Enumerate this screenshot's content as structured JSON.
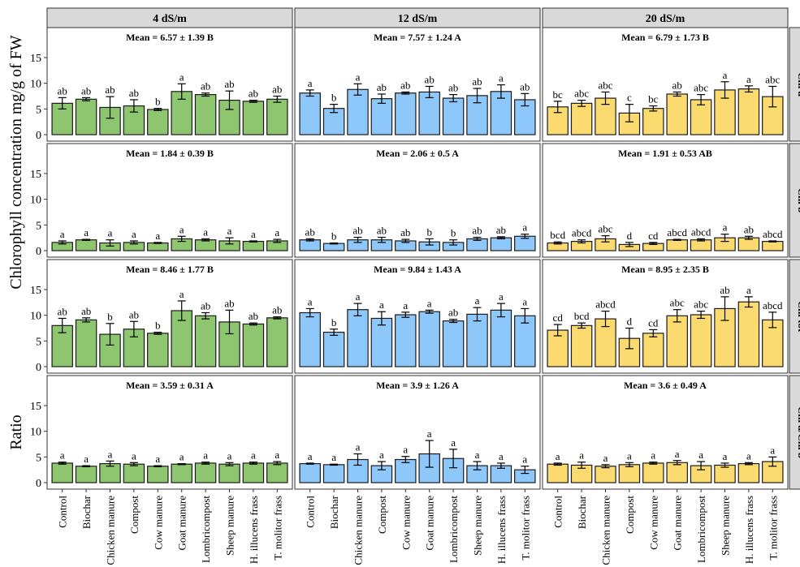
{
  "chart_data": {
    "type": "bar",
    "ylabel": "Chlorophyll concentration mg/g of FW",
    "ylabel_bottom": "Ratio",
    "categories": [
      "Control",
      "Biochar",
      "Chicken manure",
      "Compost",
      "Cow manure",
      "Goat manure",
      "Lombricompost",
      "Sheep manure",
      "H. illucens frass",
      "T. molitor frass"
    ],
    "columns": [
      "4 dS/m",
      "12 dS/m",
      "20 dS/m"
    ],
    "colors": [
      "#8dc66e",
      "#8ec8fa",
      "#fbdb6f"
    ],
    "ylim": [
      0,
      18
    ],
    "yticks": [
      0,
      5,
      10,
      15
    ],
    "rows": [
      {
        "name": "Chl a",
        "panels": [
          {
            "mean": "Mean = 6.57 ± 1.39 B",
            "values": [
              6.1,
              6.9,
              5.3,
              5.6,
              4.9,
              8.4,
              7.8,
              6.7,
              6.5,
              6.9
            ],
            "errors": [
              1.1,
              0.3,
              2.1,
              1.2,
              0.2,
              1.5,
              0.3,
              1.8,
              0.2,
              0.6
            ],
            "letters": [
              "ab",
              "ab",
              "ab",
              "ab",
              "b",
              "a",
              "ab",
              "ab",
              "ab",
              "ab"
            ]
          },
          {
            "mean": "Mean = 7.57 ± 1.24 A",
            "values": [
              8.1,
              5.1,
              8.8,
              7.0,
              8.1,
              8.3,
              7.1,
              7.6,
              8.4,
              6.8
            ],
            "errors": [
              0.6,
              0.8,
              1.1,
              0.9,
              0.2,
              1.1,
              0.7,
              1.4,
              1.3,
              1.2
            ],
            "letters": [
              "a",
              "b",
              "a",
              "ab",
              "ab",
              "ab",
              "ab",
              "ab",
              "a",
              "ab"
            ]
          },
          {
            "mean": "Mean = 6.79 ± 1.73 B",
            "values": [
              5.4,
              6.1,
              7.1,
              4.2,
              5.1,
              7.9,
              6.8,
              8.7,
              8.9,
              7.4
            ],
            "errors": [
              1.1,
              0.6,
              1.2,
              1.7,
              0.5,
              0.4,
              1.0,
              1.6,
              0.6,
              2.0
            ],
            "letters": [
              "bc",
              "abc",
              "abc",
              "c",
              "bc",
              "ab",
              "abc",
              "a",
              "a",
              "abc"
            ]
          }
        ]
      },
      {
        "name": "Chl b",
        "panels": [
          {
            "mean": "Mean = 1.84 ± 0.39 B",
            "values": [
              1.6,
              2.1,
              1.5,
              1.6,
              1.5,
              2.3,
              2.1,
              1.9,
              1.8,
              1.9
            ],
            "errors": [
              0.3,
              0.1,
              0.6,
              0.3,
              0.1,
              0.5,
              0.2,
              0.6,
              0.1,
              0.3
            ],
            "letters": [
              "a",
              "a",
              "a",
              "a",
              "a",
              "a",
              "a",
              "a",
              "a",
              "a"
            ]
          },
          {
            "mean": "Mean = 2.06 ± 0.5 A",
            "values": [
              2.1,
              1.4,
              2.1,
              2.1,
              1.9,
              1.7,
              1.6,
              2.3,
              2.5,
              2.8
            ],
            "errors": [
              0.2,
              0.1,
              0.5,
              0.5,
              0.3,
              0.6,
              0.5,
              0.3,
              0.2,
              0.4
            ],
            "letters": [
              "ab",
              "b",
              "ab",
              "ab",
              "ab",
              "b",
              "b",
              "ab",
              "ab",
              "a"
            ]
          },
          {
            "mean": "Mean = 1.91 ± 0.53 AB",
            "values": [
              1.5,
              1.8,
              2.3,
              1.2,
              1.4,
              2.1,
              2.1,
              2.5,
              2.5,
              1.8
            ],
            "errors": [
              0.2,
              0.3,
              0.6,
              0.4,
              0.2,
              0.1,
              0.2,
              0.7,
              0.3,
              0.1
            ],
            "letters": [
              "bcd",
              "abcd",
              "abc",
              "d",
              "cd",
              "abcd",
              "abcd",
              "a",
              "ab",
              "abcd"
            ]
          }
        ]
      },
      {
        "name": "Chl tot",
        "panels": [
          {
            "mean": "Mean = 8.46 ± 1.77 B",
            "values": [
              8.0,
              9.1,
              6.3,
              7.3,
              6.5,
              10.9,
              9.9,
              8.7,
              8.3,
              9.5
            ],
            "errors": [
              1.4,
              0.4,
              2.1,
              1.5,
              0.2,
              1.9,
              0.6,
              2.3,
              0.2,
              0.2
            ],
            "letters": [
              "ab",
              "ab",
              "b",
              "ab",
              "b",
              "a",
              "ab",
              "ab",
              "ab",
              "ab"
            ]
          },
          {
            "mean": "Mean = 9.84 ± 1.43 A",
            "values": [
              10.5,
              6.7,
              11.1,
              9.4,
              10.1,
              10.7,
              8.9,
              10.2,
              11.0,
              9.9
            ],
            "errors": [
              0.8,
              0.6,
              1.2,
              1.3,
              0.5,
              0.3,
              0.3,
              1.3,
              1.3,
              1.4
            ],
            "letters": [
              "a",
              "b",
              "a",
              "a",
              "a",
              "a",
              "ab",
              "a",
              "a",
              "a"
            ]
          },
          {
            "mean": "Mean = 8.95 ± 2.35 B",
            "values": [
              7.1,
              8.0,
              9.3,
              5.5,
              6.5,
              9.9,
              10.1,
              11.3,
              12.6,
              9.1
            ],
            "errors": [
              1.1,
              0.5,
              1.5,
              2.0,
              0.7,
              1.2,
              0.7,
              2.3,
              1.0,
              1.5
            ],
            "letters": [
              "cd",
              "bcd",
              "abcd",
              "d",
              "cd",
              "abc",
              "abc",
              "ab",
              "a",
              "abcd"
            ]
          }
        ]
      },
      {
        "name": "Chl a/Chl b",
        "panels": [
          {
            "mean": "Mean = 3.59 ± 0.31 A",
            "values": [
              3.8,
              3.2,
              3.7,
              3.6,
              3.2,
              3.6,
              3.8,
              3.6,
              3.8,
              3.8
            ],
            "errors": [
              0.2,
              0.1,
              0.5,
              0.3,
              0.1,
              0.1,
              0.2,
              0.3,
              0.2,
              0.3
            ],
            "letters": [
              "a",
              "a",
              "a",
              "a",
              "a",
              "a",
              "a",
              "a",
              "a",
              "a"
            ]
          },
          {
            "mean": "Mean = 3.9 ± 1.26 A",
            "values": [
              3.7,
              3.5,
              4.5,
              3.3,
              4.5,
              5.6,
              4.7,
              3.3,
              3.3,
              2.5
            ],
            "errors": [
              0.1,
              0.1,
              1.1,
              0.8,
              0.6,
              2.6,
              1.8,
              0.8,
              0.5,
              0.7
            ],
            "letters": [
              "a",
              "a",
              "a",
              "a",
              "a",
              "a",
              "a",
              "a",
              "a",
              "a"
            ]
          },
          {
            "mean": "Mean = 3.6 ± 0.49 A",
            "values": [
              3.6,
              3.4,
              3.2,
              3.5,
              3.8,
              3.9,
              3.3,
              3.4,
              3.7,
              4.1
            ],
            "errors": [
              0.2,
              0.6,
              0.3,
              0.4,
              0.2,
              0.4,
              0.8,
              0.4,
              0.2,
              0.9
            ],
            "letters": [
              "a",
              "a",
              "a",
              "a",
              "a",
              "a",
              "a",
              "a",
              "a",
              "a"
            ]
          }
        ]
      }
    ]
  }
}
